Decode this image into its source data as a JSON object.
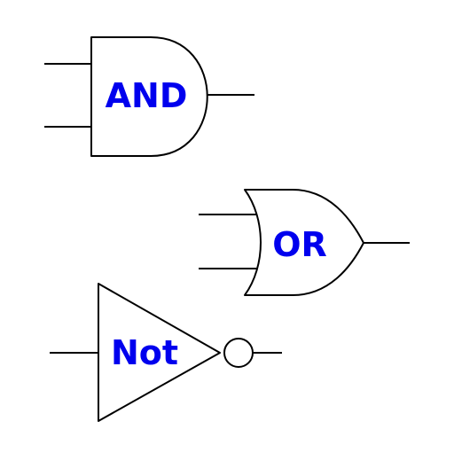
{
  "gates": {
    "and": {
      "label": "AND"
    },
    "or": {
      "label": "OR"
    },
    "not": {
      "label": "Not"
    }
  },
  "colors": {
    "stroke": "#000000",
    "label": "#0000ee",
    "background": "#ffffff"
  }
}
